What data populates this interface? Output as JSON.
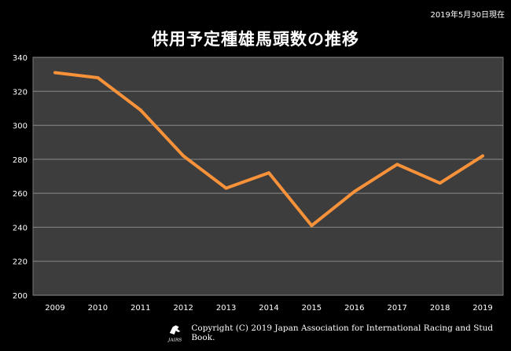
{
  "header": {
    "date_note": "2019年5月30日現在"
  },
  "chart_data": {
    "type": "line",
    "title": "供用予定種雄馬頭数の推移",
    "xlabel": "",
    "ylabel": "",
    "categories": [
      "2009",
      "2010",
      "2011",
      "2012",
      "2013",
      "2014",
      "2015",
      "2016",
      "2017",
      "2018",
      "2019"
    ],
    "series": [
      {
        "name": "供用予定種雄馬頭数",
        "values": [
          331,
          328,
          309,
          282,
          263,
          272,
          241,
          261,
          277,
          266,
          282
        ]
      }
    ],
    "ylim": [
      200,
      340
    ],
    "yticks": [
      200,
      220,
      240,
      260,
      280,
      300,
      320,
      340
    ],
    "grid": true,
    "colors": {
      "line": "#f7923a",
      "plot_bg": "#3d3d3d",
      "grid": "#8a8a8a"
    }
  },
  "footer": {
    "copyright": "Copyright (C) 2019 Japan Association for International Racing and Stud Book.",
    "logo_text": "JAIRS"
  }
}
